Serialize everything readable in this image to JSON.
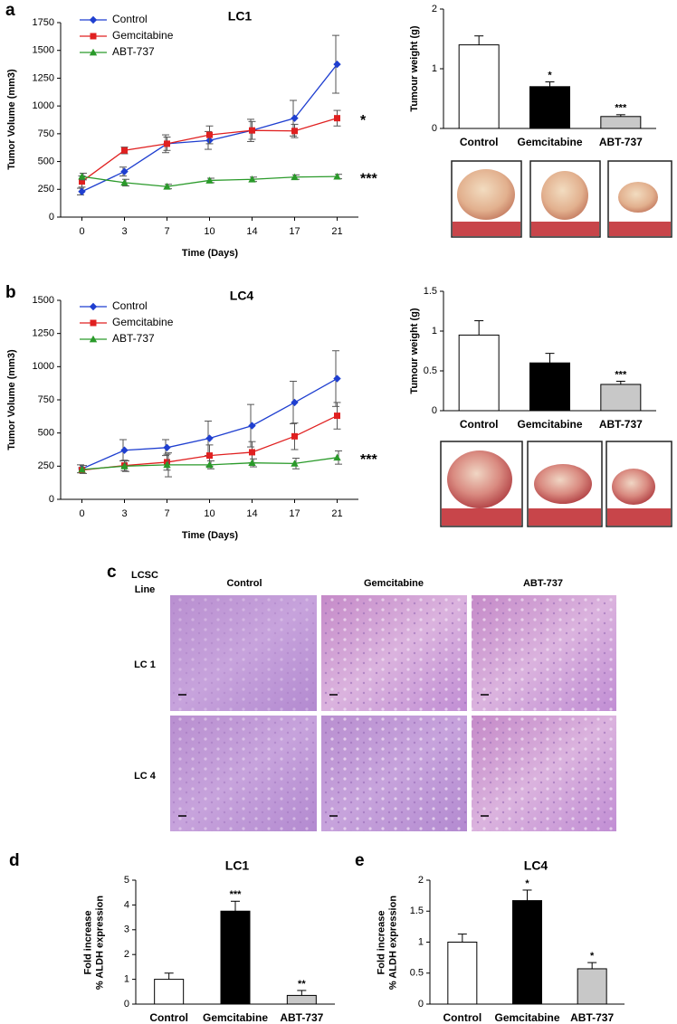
{
  "chart_data": [
    {
      "panel": "a",
      "type": "line",
      "title": "LC1",
      "x_label": "Time (Days)",
      "y_label": "Tumor Volume (mm3)",
      "legend": "upper left",
      "categories": [
        0,
        3,
        7,
        10,
        14,
        17,
        21
      ],
      "ylim": [
        0,
        1750
      ],
      "yticks": [
        0,
        250,
        500,
        750,
        1000,
        1250,
        1500,
        1750
      ],
      "series": [
        {
          "name": "Control",
          "color": "#1f3fd0",
          "marker": "diamond",
          "values": [
            230,
            410,
            660,
            690,
            780,
            890,
            1375
          ],
          "errors": [
            30,
            40,
            80,
            80,
            100,
            160,
            260
          ]
        },
        {
          "name": "Gemcitabine",
          "color": "#e02020",
          "marker": "square",
          "values": [
            320,
            600,
            660,
            740,
            780,
            775,
            890
          ],
          "errors": [
            50,
            30,
            60,
            80,
            80,
            60,
            70
          ]
        },
        {
          "name": "ABT-737",
          "color": "#2a9a2a",
          "marker": "triangle",
          "values": [
            365,
            310,
            275,
            330,
            340,
            360,
            365
          ],
          "errors": [
            30,
            30,
            20,
            20,
            20,
            20,
            20
          ]
        }
      ],
      "annotations": [
        "*",
        "***"
      ]
    },
    {
      "type": "bar",
      "y_label": [
        "Tumour weight (g)"
      ],
      "categories": [
        "Control",
        "Gemcitabine",
        "ABT-737"
      ],
      "values": [
        1.4,
        0.7,
        0.2
      ],
      "errors": [
        0.15,
        0.08,
        0.03
      ],
      "colors": [
        "#ffffff",
        "#000000",
        "#c8c8c8"
      ],
      "significance": [
        null,
        "*",
        "***"
      ],
      "ylim": [
        0,
        2
      ],
      "yticks": [
        0,
        1,
        2
      ]
    },
    {
      "panel": "b",
      "type": "line",
      "title": "LC4",
      "x_label": "Time (Days)",
      "y_label": "Tumor Volume (mm3)",
      "legend": "upper left",
      "categories": [
        0,
        3,
        7,
        10,
        14,
        17,
        21
      ],
      "ylim": [
        0,
        1500
      ],
      "yticks": [
        0,
        250,
        500,
        750,
        1000,
        1250,
        1500
      ],
      "series": [
        {
          "name": "Control",
          "color": "#1f3fd0",
          "marker": "diamond",
          "values": [
            230,
            370,
            390,
            460,
            555,
            730,
            910
          ],
          "errors": [
            30,
            80,
            60,
            130,
            160,
            160,
            210
          ]
        },
        {
          "name": "Gemcitabine",
          "color": "#e02020",
          "marker": "square",
          "values": [
            220,
            255,
            280,
            330,
            355,
            475,
            630
          ],
          "errors": [
            20,
            40,
            60,
            80,
            80,
            100,
            100
          ]
        },
        {
          "name": "ABT-737",
          "color": "#2a9a2a",
          "marker": "triangle",
          "values": [
            225,
            250,
            260,
            260,
            275,
            270,
            315
          ],
          "errors": [
            30,
            40,
            90,
            30,
            30,
            40,
            50
          ]
        }
      ],
      "annotations": [
        "***"
      ]
    },
    {
      "type": "bar",
      "y_label": [
        "Tumour  weight (g)"
      ],
      "categories": [
        "Control",
        "Gemcitabine",
        "ABT-737"
      ],
      "values": [
        0.95,
        0.6,
        0.33
      ],
      "errors": [
        0.18,
        0.12,
        0.04
      ],
      "colors": [
        "#ffffff",
        "#000000",
        "#c8c8c8"
      ],
      "significance": [
        null,
        null,
        "***"
      ],
      "ylim": [
        0,
        1.5
      ],
      "yticks": [
        0,
        0.5,
        1,
        1.5
      ]
    },
    {
      "panel": "d",
      "type": "bar",
      "title": "LC1",
      "y_label": [
        "Fold increase",
        "% ALDH expression"
      ],
      "categories": [
        "Control",
        "Gemcitabine",
        "ABT-737"
      ],
      "values": [
        1,
        3.75,
        0.35
      ],
      "errors": [
        0.25,
        0.4,
        0.2
      ],
      "colors": [
        "#ffffff",
        "#000000",
        "#c8c8c8"
      ],
      "significance": [
        null,
        "***",
        "**"
      ],
      "ylim": [
        0,
        5
      ],
      "yticks": [
        0,
        1,
        2,
        3,
        4,
        5
      ]
    },
    {
      "panel": "e",
      "type": "bar",
      "title": "LC4",
      "y_label": [
        "Fold increase",
        "% ALDH expression"
      ],
      "categories": [
        "Control",
        "Gemcitabine",
        "ABT-737"
      ],
      "values": [
        1,
        1.67,
        0.57
      ],
      "errors": [
        0.13,
        0.17,
        0.1
      ],
      "colors": [
        "#ffffff",
        "#000000",
        "#c8c8c8"
      ],
      "significance": [
        null,
        "*",
        "*"
      ],
      "ylim": [
        0,
        2
      ],
      "yticks": [
        0,
        0.5,
        1,
        1.5,
        2
      ]
    }
  ],
  "histology": {
    "panel": "c",
    "corner_label": [
      "LCSC",
      "Line"
    ],
    "columns": [
      "Control",
      "Gemcitabine",
      "ABT-737"
    ],
    "rows": [
      "LC 1",
      "LC 4"
    ]
  }
}
